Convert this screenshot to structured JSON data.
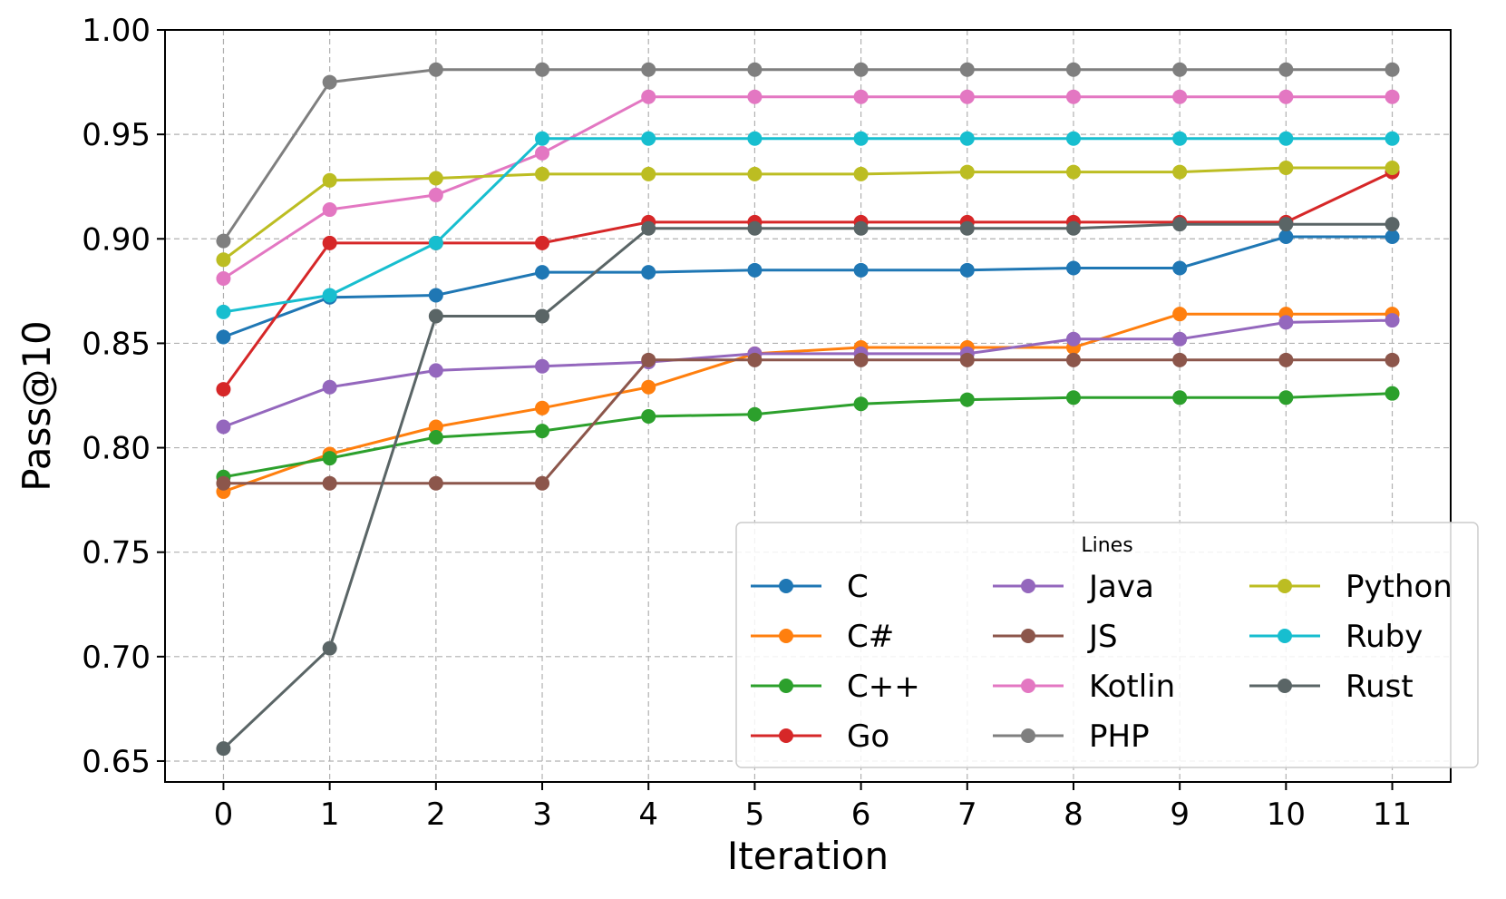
{
  "chart_data": {
    "type": "line",
    "title": "",
    "xlabel": "Iteration",
    "ylabel": "Pass@10",
    "x": [
      0,
      1,
      2,
      3,
      4,
      5,
      6,
      7,
      8,
      9,
      10,
      11
    ],
    "xticks": [
      "0",
      "1",
      "2",
      "3",
      "4",
      "5",
      "6",
      "7",
      "8",
      "9",
      "10",
      "11"
    ],
    "yticks": [
      "0.65",
      "0.70",
      "0.75",
      "0.80",
      "0.85",
      "0.90",
      "0.95",
      "1.00"
    ],
    "xlim": [
      -0.55,
      11.55
    ],
    "ylim": [
      0.64,
      1.0
    ],
    "grid": true,
    "legend": {
      "title": "Lines",
      "placement": "lower-right",
      "columns": 3
    },
    "series": [
      {
        "name": "C",
        "color": "#1f77b4",
        "values": [
          0.853,
          0.872,
          0.873,
          0.884,
          0.884,
          0.885,
          0.885,
          0.885,
          0.886,
          0.886,
          0.901,
          0.901
        ]
      },
      {
        "name": "C#",
        "color": "#ff7f0e",
        "values": [
          0.779,
          0.797,
          0.81,
          0.819,
          0.829,
          0.845,
          0.848,
          0.848,
          0.848,
          0.864,
          0.864,
          0.864
        ]
      },
      {
        "name": "C++",
        "color": "#2ca02c",
        "values": [
          0.786,
          0.795,
          0.805,
          0.808,
          0.815,
          0.816,
          0.821,
          0.823,
          0.824,
          0.824,
          0.824,
          0.826
        ]
      },
      {
        "name": "Go",
        "color": "#d62728",
        "values": [
          0.828,
          0.898,
          0.898,
          0.898,
          0.908,
          0.908,
          0.908,
          0.908,
          0.908,
          0.908,
          0.908,
          0.932
        ]
      },
      {
        "name": "Java",
        "color": "#9467bd",
        "values": [
          0.81,
          0.829,
          0.837,
          0.839,
          0.841,
          0.845,
          0.845,
          0.845,
          0.852,
          0.852,
          0.86,
          0.861
        ]
      },
      {
        "name": "JS",
        "color": "#8c564b",
        "values": [
          0.783,
          0.783,
          0.783,
          0.783,
          0.842,
          0.842,
          0.842,
          0.842,
          0.842,
          0.842,
          0.842,
          0.842
        ]
      },
      {
        "name": "Kotlin",
        "color": "#e377c2",
        "values": [
          0.881,
          0.914,
          0.921,
          0.941,
          0.968,
          0.968,
          0.968,
          0.968,
          0.968,
          0.968,
          0.968,
          0.968
        ]
      },
      {
        "name": "PHP",
        "color": "#7f7f7f",
        "values": [
          0.899,
          0.975,
          0.981,
          0.981,
          0.981,
          0.981,
          0.981,
          0.981,
          0.981,
          0.981,
          0.981,
          0.981
        ]
      },
      {
        "name": "Python",
        "color": "#bcbd22",
        "values": [
          0.89,
          0.928,
          0.929,
          0.931,
          0.931,
          0.931,
          0.931,
          0.932,
          0.932,
          0.932,
          0.934,
          0.934
        ]
      },
      {
        "name": "Ruby",
        "color": "#17becf",
        "values": [
          0.865,
          0.873,
          0.898,
          0.948,
          0.948,
          0.948,
          0.948,
          0.948,
          0.948,
          0.948,
          0.948,
          0.948
        ]
      },
      {
        "name": "Rust",
        "color": "#5a6566",
        "values": [
          0.656,
          0.704,
          0.863,
          0.863,
          0.905,
          0.905,
          0.905,
          0.905,
          0.905,
          0.907,
          0.907,
          0.907
        ]
      }
    ]
  }
}
